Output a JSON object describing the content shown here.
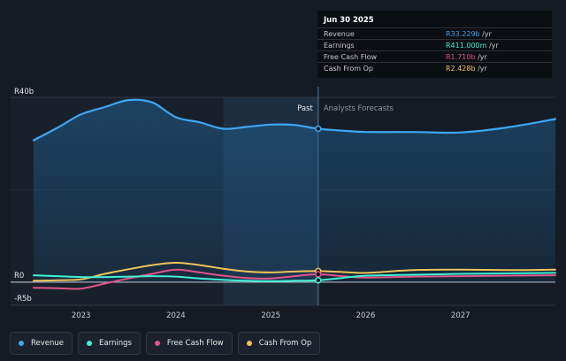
{
  "tooltip": {
    "date": "Jun 30 2025",
    "rows": [
      {
        "label": "Revenue",
        "value": "R33.229b",
        "unit": " /yr",
        "color": "#3ea6f2"
      },
      {
        "label": "Earnings",
        "value": "R411.000m",
        "unit": " /yr",
        "color": "#3ff0d5"
      },
      {
        "label": "Free Cash Flow",
        "value": "R1.710b",
        "unit": " /yr",
        "color": "#e0548a"
      },
      {
        "label": "Cash From Op",
        "value": "R2.428b",
        "unit": " /yr",
        "color": "#f0c35a"
      }
    ]
  },
  "legend": [
    {
      "label": "Revenue",
      "color": "#3ea6f2"
    },
    {
      "label": "Earnings",
      "color": "#3ff0d5"
    },
    {
      "label": "Free Cash Flow",
      "color": "#e0548a"
    },
    {
      "label": "Cash From Op",
      "color": "#f0c35a"
    }
  ],
  "chart_data": {
    "type": "line",
    "y_tick_labels": [
      "R40b",
      "R0",
      "-R5b"
    ],
    "y_ticks": [
      40,
      0,
      -5
    ],
    "ylim": [
      -5,
      40
    ],
    "xlim": [
      2022.5,
      2028.0
    ],
    "x_tick_labels": [
      "2023",
      "2024",
      "2025",
      "2026",
      "2027"
    ],
    "x_ticks": [
      2023,
      2024,
      2025,
      2026,
      2027
    ],
    "divider_x": 2025.5,
    "shaded_region": [
      2024.5,
      2025.5
    ],
    "past_label": "Past",
    "forecast_label": "Analysts Forecasts",
    "series": [
      {
        "name": "Revenue",
        "color": "#3ea6f2",
        "width": 2.2,
        "area": true,
        "x": [
          2022.5,
          2022.75,
          2023.0,
          2023.25,
          2023.5,
          2023.75,
          2024.0,
          2024.25,
          2024.5,
          2024.75,
          2025.0,
          2025.25,
          2025.5,
          2025.75,
          2026.0,
          2026.5,
          2027.0,
          2027.5,
          2028.0
        ],
        "y": [
          30.7,
          33.4,
          36.3,
          37.9,
          39.4,
          38.9,
          35.7,
          34.6,
          33.2,
          33.6,
          34.1,
          34.0,
          33.2,
          32.8,
          32.5,
          32.5,
          32.4,
          33.5,
          35.3
        ]
      },
      {
        "name": "Cash From Op",
        "color": "#f0c35a",
        "width": 2,
        "x": [
          2022.5,
          2022.75,
          2023.0,
          2023.25,
          2023.5,
          2023.75,
          2024.0,
          2024.25,
          2024.5,
          2024.75,
          2025.0,
          2025.25,
          2025.5,
          2025.75,
          2026.0,
          2026.5,
          2027.0,
          2027.5,
          2028.0
        ],
        "y": [
          0.3,
          0.4,
          0.6,
          1.8,
          2.8,
          3.7,
          4.2,
          3.7,
          2.9,
          2.3,
          2.1,
          2.3,
          2.4,
          2.2,
          2.0,
          2.6,
          2.7,
          2.6,
          2.7
        ]
      },
      {
        "name": "Free Cash Flow",
        "color": "#e0548a",
        "width": 2,
        "x": [
          2022.5,
          2022.75,
          2023.0,
          2023.25,
          2023.5,
          2023.75,
          2024.0,
          2024.25,
          2024.5,
          2024.75,
          2025.0,
          2025.25,
          2025.5,
          2025.75,
          2026.0,
          2026.5,
          2027.0,
          2027.5,
          2028.0
        ],
        "y": [
          -1.2,
          -1.3,
          -1.4,
          -0.3,
          0.8,
          1.8,
          2.7,
          2.1,
          1.4,
          0.9,
          0.8,
          1.3,
          1.7,
          1.3,
          1.0,
          1.2,
          1.3,
          1.4,
          1.5
        ]
      },
      {
        "name": "Earnings",
        "color": "#3ff0d5",
        "width": 2,
        "x": [
          2022.5,
          2022.75,
          2023.0,
          2023.25,
          2023.5,
          2023.75,
          2024.0,
          2024.25,
          2024.5,
          2024.75,
          2025.0,
          2025.25,
          2025.5,
          2025.75,
          2026.0,
          2026.5,
          2027.0,
          2027.5,
          2028.0
        ],
        "y": [
          1.5,
          1.3,
          1.1,
          1.1,
          1.2,
          1.3,
          1.2,
          0.8,
          0.5,
          0.3,
          0.2,
          0.3,
          0.4,
          0.9,
          1.4,
          1.6,
          1.8,
          1.9,
          2.0
        ]
      }
    ]
  }
}
